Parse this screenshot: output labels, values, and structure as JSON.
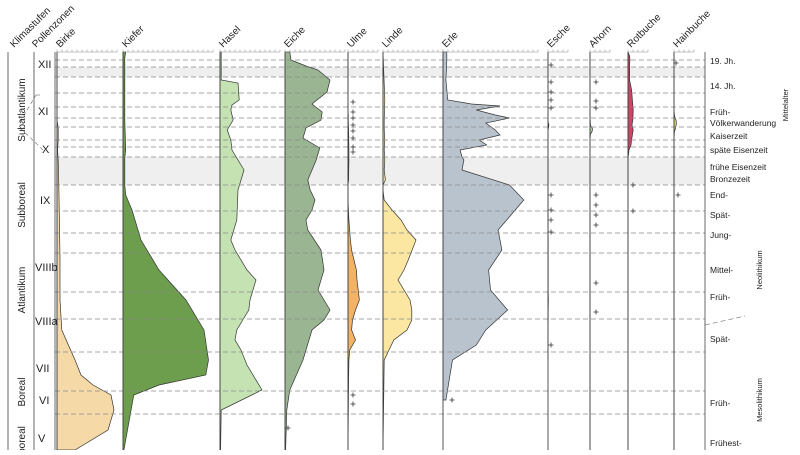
{
  "chart_data": {
    "type": "area",
    "title": "",
    "header_labels": {
      "climate_stages": "Klimastufen",
      "pollen_zones": "Pollenzonen"
    },
    "climate_stages": [
      "Subatlantikum",
      "Subboreal",
      "Atlantikum",
      "Boreal",
      "Präboreal"
    ],
    "climate_stage_visible_text": [
      "Subatlantikum",
      "Subboreal",
      "Atlantikum",
      "Boreal",
      "boreal"
    ],
    "pollen_zones": [
      "XII",
      "XI",
      "X",
      "IX",
      "VIIIb",
      "VIIIa",
      "VII",
      "VI",
      "V"
    ],
    "periods": [
      "19. Jh.",
      "14. Jh.",
      "Früh-",
      "Völkerwanderung",
      "Kaiserzeit",
      "späte Eisenzeit",
      "frühe Eisenzeit",
      "Bronzezeit",
      "End-",
      "Spät-",
      "Jung-",
      "Mittel-",
      "Früh-",
      "Spät-",
      "Früh-",
      "Frühest-"
    ],
    "eras": [
      "Mittelalter",
      "Neolithikum",
      "Mesolithikum"
    ],
    "series": [
      {
        "name": "Birke",
        "color": "#f5d9a6",
        "values": [
          0,
          0,
          0,
          2,
          2,
          1,
          2,
          3,
          4,
          5,
          5,
          8,
          30,
          40,
          60,
          90,
          95,
          85,
          30
        ]
      },
      {
        "name": "Kiefer",
        "color": "#6c9e4e",
        "values": [
          3,
          2,
          2,
          2,
          2,
          2,
          2,
          3,
          2,
          2,
          2,
          3,
          10,
          20,
          40,
          70,
          90,
          95,
          92,
          40,
          12,
          1
        ]
      },
      {
        "name": "Hasel",
        "color": "#c5e2b3",
        "values": [
          2,
          2,
          2,
          30,
          32,
          20,
          18,
          22,
          12,
          18,
          20,
          40,
          30,
          28,
          18,
          25,
          45,
          60,
          50,
          48,
          38,
          28,
          25,
          35,
          45,
          70,
          2,
          1
        ]
      },
      {
        "name": "Eiche",
        "color": "#9ab591",
        "values": [
          8,
          10,
          35,
          55,
          75,
          70,
          45,
          62,
          60,
          35,
          30,
          58,
          52,
          38,
          42,
          50,
          45,
          35,
          38,
          60,
          65,
          60,
          55,
          75,
          65,
          45,
          30,
          8,
          3,
          1
        ]
      },
      {
        "name": "Ulme",
        "color": "#f2b366",
        "values": [
          0,
          0,
          0,
          0,
          1,
          1,
          2,
          3,
          3,
          2,
          0,
          0,
          3,
          8,
          12,
          20,
          28,
          30,
          38,
          25,
          15,
          12,
          25,
          6,
          3,
          2,
          0
        ]
      },
      {
        "name": "Linde",
        "color": "#fbe6a2",
        "values": [
          0,
          3,
          2,
          2,
          3,
          2,
          3,
          2,
          4,
          0,
          0,
          2,
          15,
          30,
          40,
          55,
          42,
          35,
          25,
          45,
          48,
          48,
          40,
          18,
          2,
          0
        ]
      },
      {
        "name": "Erle",
        "color": "#b9c3cd",
        "values": [
          4,
          4,
          3,
          5,
          30,
          60,
          35,
          55,
          70,
          45,
          55,
          60,
          38,
          46,
          18,
          20,
          22,
          20,
          70,
          85,
          58,
          62,
          48,
          50,
          68,
          45,
          35,
          10,
          3
        ]
      },
      {
        "name": "Esche",
        "color": "#f2b366",
        "values": [
          0,
          0,
          0,
          0,
          0,
          1,
          5,
          3,
          0,
          0,
          0,
          0,
          0,
          1,
          1,
          1,
          1,
          2,
          1,
          1,
          0,
          0,
          0
        ]
      },
      {
        "name": "Ahorn",
        "color": "#a9d39a",
        "values": [
          0,
          0,
          0,
          0,
          1,
          2,
          4,
          12,
          14,
          10,
          3,
          0,
          0,
          0
        ]
      },
      {
        "name": "Rotbuche",
        "color": "#cc4466",
        "values": [
          0,
          8,
          10,
          8,
          8,
          18,
          22,
          26,
          24,
          20,
          26,
          18,
          15,
          5,
          3,
          1,
          0,
          0
        ]
      },
      {
        "name": "Hainbuche",
        "color": "#d6df4a",
        "values": [
          0,
          0,
          0,
          0,
          1,
          2,
          5,
          10,
          12,
          10,
          8,
          2,
          0,
          0
        ]
      }
    ]
  }
}
